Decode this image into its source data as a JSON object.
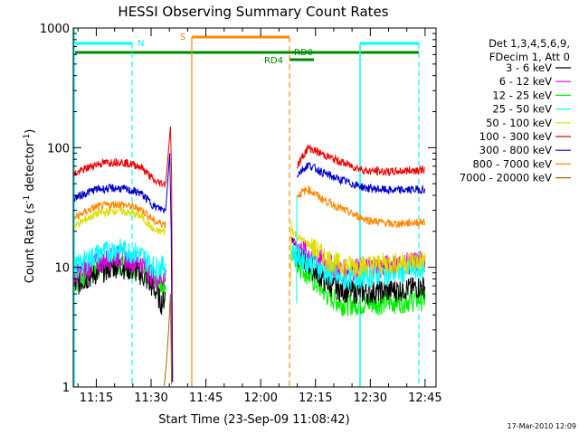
{
  "chart_data": {
    "type": "line",
    "title": "HESSI Observing Summary Count Rates",
    "xlabel": "Start Time (23-Sep-09 11:08:42)",
    "ylabel_main": "Count Rate (s",
    "ylabel_sup1": "-1",
    "ylabel_mid": " detector",
    "ylabel_sup2": "-1",
    "ylabel_end": ")",
    "x_range_minutes": [
      668.7,
      768
    ],
    "y_range": [
      1,
      1000
    ],
    "y_scale": "log",
    "x_ticks": [
      {
        "v": 675,
        "label": "11:15"
      },
      {
        "v": 690,
        "label": "11:30"
      },
      {
        "v": 705,
        "label": "11:45"
      },
      {
        "v": 720,
        "label": "12:00"
      },
      {
        "v": 735,
        "label": "12:15"
      },
      {
        "v": 750,
        "label": "12:30"
      },
      {
        "v": 765,
        "label": "12:45"
      }
    ],
    "y_ticks": [
      {
        "v": 1,
        "label": "1"
      },
      {
        "v": 10,
        "label": "10"
      },
      {
        "v": 100,
        "label": "100"
      },
      {
        "v": 1000,
        "label": "1000"
      }
    ],
    "legend": {
      "position": "right",
      "header": [
        "Det 1,3,4,5,6,9,",
        "FDecim 1, Att 0"
      ]
    },
    "series": [
      {
        "name": "3 - 6 keV",
        "color": "#000000",
        "pre": [
          [
            669,
            7
          ],
          [
            675,
            9
          ],
          [
            681,
            10.5
          ],
          [
            687,
            9
          ],
          [
            691,
            6.5
          ],
          [
            693,
            5
          ],
          [
            694,
            6
          ]
        ],
        "post": [
          [
            728.5,
            18
          ],
          [
            730,
            13
          ],
          [
            734,
            10
          ],
          [
            738,
            7.5
          ],
          [
            742,
            6.5
          ],
          [
            749,
            6.2
          ],
          [
            756,
            6.5
          ],
          [
            765,
            7
          ]
        ]
      },
      {
        "name": "6 - 12 keV",
        "color": "#dd00dd",
        "pre": [
          [
            669,
            8.5
          ],
          [
            675,
            11
          ],
          [
            681,
            12.5
          ],
          [
            687,
            11
          ],
          [
            691,
            8
          ],
          [
            694,
            8.5
          ]
        ],
        "post": [
          [
            728.5,
            17
          ],
          [
            730,
            15
          ],
          [
            734,
            13
          ],
          [
            738,
            11
          ],
          [
            742,
            9.5
          ],
          [
            749,
            10
          ],
          [
            756,
            10.5
          ],
          [
            765,
            11.5
          ]
        ]
      },
      {
        "name": "12 - 25 keV",
        "color": "#00ee00",
        "pre": [
          [
            669,
            7.5
          ],
          [
            675,
            10
          ],
          [
            681,
            11
          ],
          [
            687,
            10
          ],
          [
            691,
            7
          ],
          [
            694,
            7.5
          ]
        ],
        "post": [
          [
            728.5,
            13
          ],
          [
            730,
            11
          ],
          [
            734,
            8
          ],
          [
            738,
            6
          ],
          [
            742,
            5
          ],
          [
            749,
            5
          ],
          [
            756,
            5.2
          ],
          [
            765,
            5.5
          ]
        ]
      },
      {
        "name": "25 - 50 keV",
        "color": "#00ffff",
        "pre": [
          [
            669,
            10
          ],
          [
            675,
            13
          ],
          [
            681,
            14.5
          ],
          [
            687,
            13
          ],
          [
            691,
            10
          ],
          [
            694,
            10.5
          ]
        ],
        "post": [
          [
            728.5,
            14
          ],
          [
            730,
            12.5
          ],
          [
            734,
            11
          ],
          [
            738,
            9
          ],
          [
            742,
            8
          ],
          [
            749,
            8.5
          ],
          [
            756,
            9
          ],
          [
            765,
            10
          ]
        ]
      },
      {
        "name": "50 - 100 keV",
        "color": "#dddd00",
        "pre": [
          [
            669,
            22
          ],
          [
            675,
            28
          ],
          [
            681,
            30
          ],
          [
            687,
            27
          ],
          [
            691,
            20
          ],
          [
            694,
            20
          ]
        ],
        "post": [
          [
            728.5,
            21
          ],
          [
            730,
            18
          ],
          [
            734,
            15
          ],
          [
            738,
            12
          ],
          [
            742,
            10.5
          ],
          [
            749,
            10.5
          ],
          [
            756,
            11
          ],
          [
            765,
            11.5
          ]
        ]
      },
      {
        "name": "100 - 300 keV",
        "color": "#ee0000",
        "pre": [
          [
            669,
            60
          ],
          [
            675,
            73
          ],
          [
            681,
            77
          ],
          [
            687,
            70
          ],
          [
            691,
            52
          ],
          [
            694,
            50
          ]
        ],
        "post": [
          [
            730,
            70
          ],
          [
            733,
            100
          ],
          [
            737,
            88
          ],
          [
            741,
            78
          ],
          [
            745,
            70
          ],
          [
            749,
            64
          ],
          [
            756,
            63
          ],
          [
            765,
            66
          ]
        ]
      },
      {
        "name": "300 - 800 keV",
        "color": "#0000cc",
        "pre": [
          [
            669,
            38
          ],
          [
            675,
            45
          ],
          [
            681,
            46
          ],
          [
            687,
            42
          ],
          [
            691,
            32
          ],
          [
            694,
            30
          ]
        ],
        "post": [
          [
            730,
            60
          ],
          [
            733,
            72
          ],
          [
            737,
            62
          ],
          [
            741,
            55
          ],
          [
            745,
            50
          ],
          [
            749,
            46
          ],
          [
            756,
            44
          ],
          [
            765,
            45
          ]
        ]
      },
      {
        "name": "800 - 7000 keV",
        "color": "#ff8800",
        "pre": [
          [
            669,
            26
          ],
          [
            675,
            32
          ],
          [
            681,
            34
          ],
          [
            687,
            31
          ],
          [
            691,
            24
          ],
          [
            694,
            23
          ]
        ],
        "post": [
          [
            730,
            40
          ],
          [
            733,
            45
          ],
          [
            737,
            37
          ],
          [
            741,
            32
          ],
          [
            745,
            28
          ],
          [
            749,
            25
          ],
          [
            756,
            23
          ],
          [
            765,
            24
          ]
        ]
      },
      {
        "name": "7000 - 20000 keV",
        "color": "#aa6600",
        "pre": [],
        "post": []
      }
    ],
    "annotations": {
      "night_n": {
        "label": "N",
        "color": "#00ffff"
      },
      "saa_s": {
        "label": "S",
        "color": "#ff8800"
      },
      "rd0": {
        "label": "RD0",
        "color": "#008800"
      },
      "rd4": {
        "label": "RD4",
        "color": "#008800"
      }
    },
    "timestamp": "17-Mar-2010 12:09"
  }
}
